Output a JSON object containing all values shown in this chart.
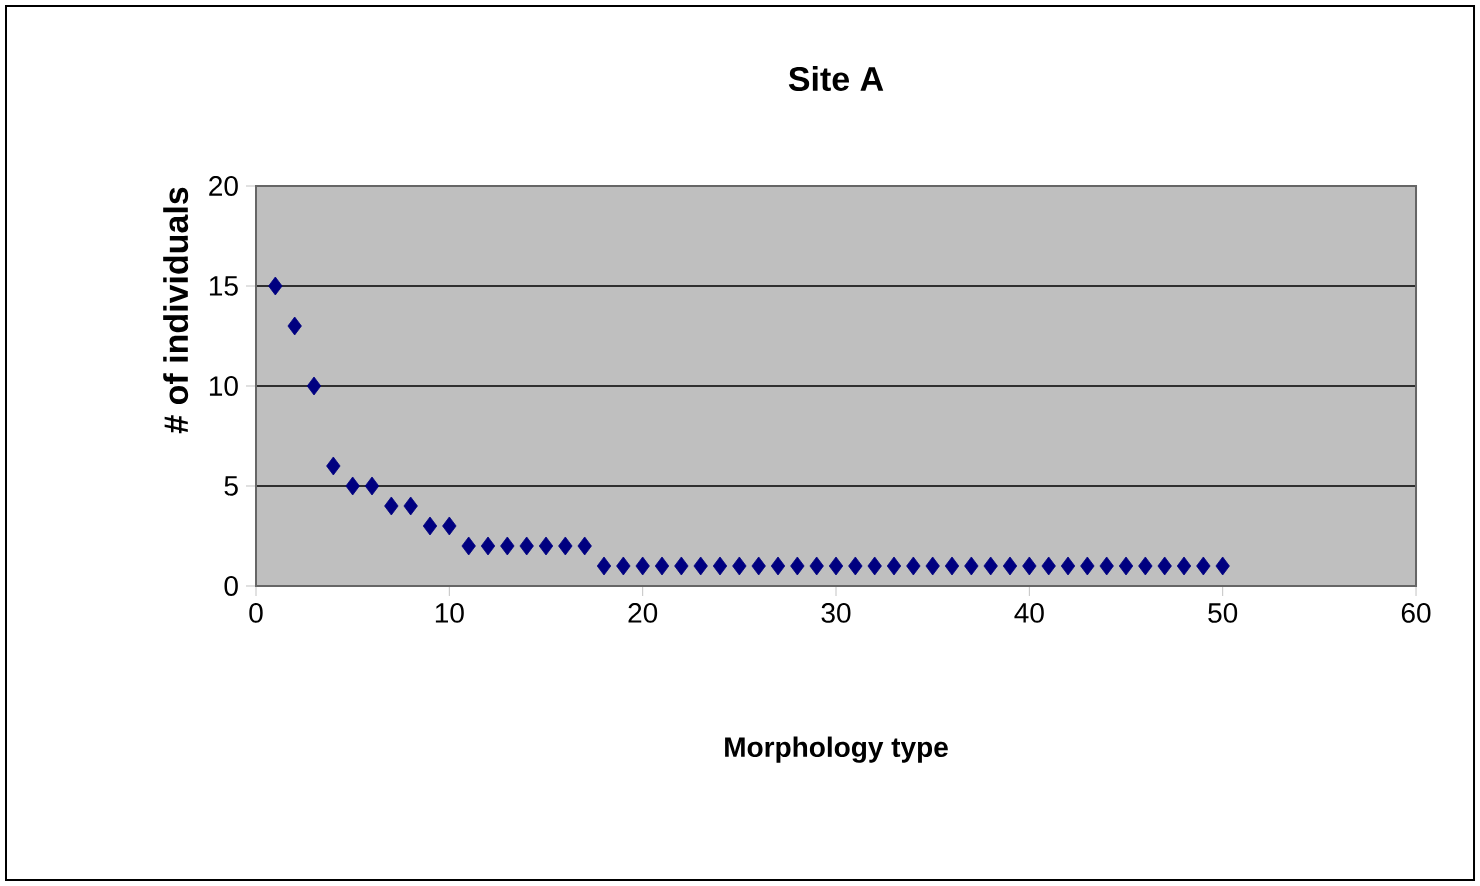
{
  "chart_data": {
    "type": "scatter",
    "title": "Site A",
    "xlabel": "Morphology type",
    "ylabel": "# of individuals",
    "x": [
      1,
      2,
      3,
      4,
      5,
      6,
      7,
      8,
      9,
      10,
      11,
      12,
      13,
      14,
      15,
      16,
      17,
      18,
      19,
      20,
      21,
      22,
      23,
      24,
      25,
      26,
      27,
      28,
      29,
      30,
      31,
      32,
      33,
      34,
      35,
      36,
      37,
      38,
      39,
      40,
      41,
      42,
      43,
      44,
      45,
      46,
      47,
      48,
      49,
      50
    ],
    "values": [
      15,
      13,
      10,
      6,
      5,
      5,
      4,
      4,
      3,
      3,
      2,
      2,
      2,
      2,
      2,
      2,
      2,
      1,
      1,
      1,
      1,
      1,
      1,
      1,
      1,
      1,
      1,
      1,
      1,
      1,
      1,
      1,
      1,
      1,
      1,
      1,
      1,
      1,
      1,
      1,
      1,
      1,
      1,
      1,
      1,
      1,
      1,
      1,
      1,
      1
    ],
    "color": "#000080",
    "marker": "diamond",
    "xlim": [
      0,
      60
    ],
    "ylim": [
      0,
      20
    ],
    "xticks": [
      0,
      10,
      20,
      30,
      40,
      50,
      60
    ],
    "yticks": [
      0,
      5,
      10,
      15,
      20
    ],
    "grid": "y"
  }
}
